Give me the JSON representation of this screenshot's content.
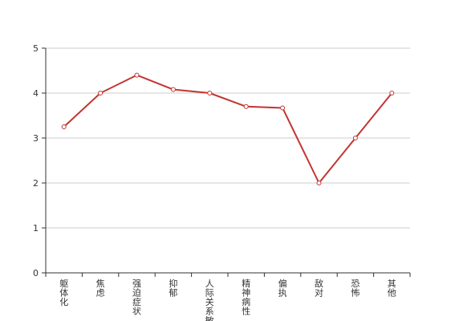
{
  "chart_data": {
    "type": "line",
    "title": "",
    "xlabel": "",
    "ylabel": "",
    "categories": [
      "躯体化",
      "焦虑",
      "强迫症状",
      "抑郁",
      "人际关系敏感",
      "精神病性",
      "偏执",
      "敌对",
      "恐怖",
      "其他"
    ],
    "series": [
      {
        "values": [
          3.25,
          4.0,
          4.4,
          4.08,
          4.0,
          3.7,
          3.67,
          2.0,
          3.0,
          4.0
        ]
      }
    ],
    "ylim": [
      0,
      5
    ],
    "yticks": [
      "0",
      "1",
      "2",
      "3",
      "4",
      "5"
    ],
    "grid": true,
    "legend": "none",
    "colors": {
      "line": "#c23531",
      "grid": "#cccccc",
      "axis": "#333333",
      "marker_fill": "#ffffff"
    }
  }
}
